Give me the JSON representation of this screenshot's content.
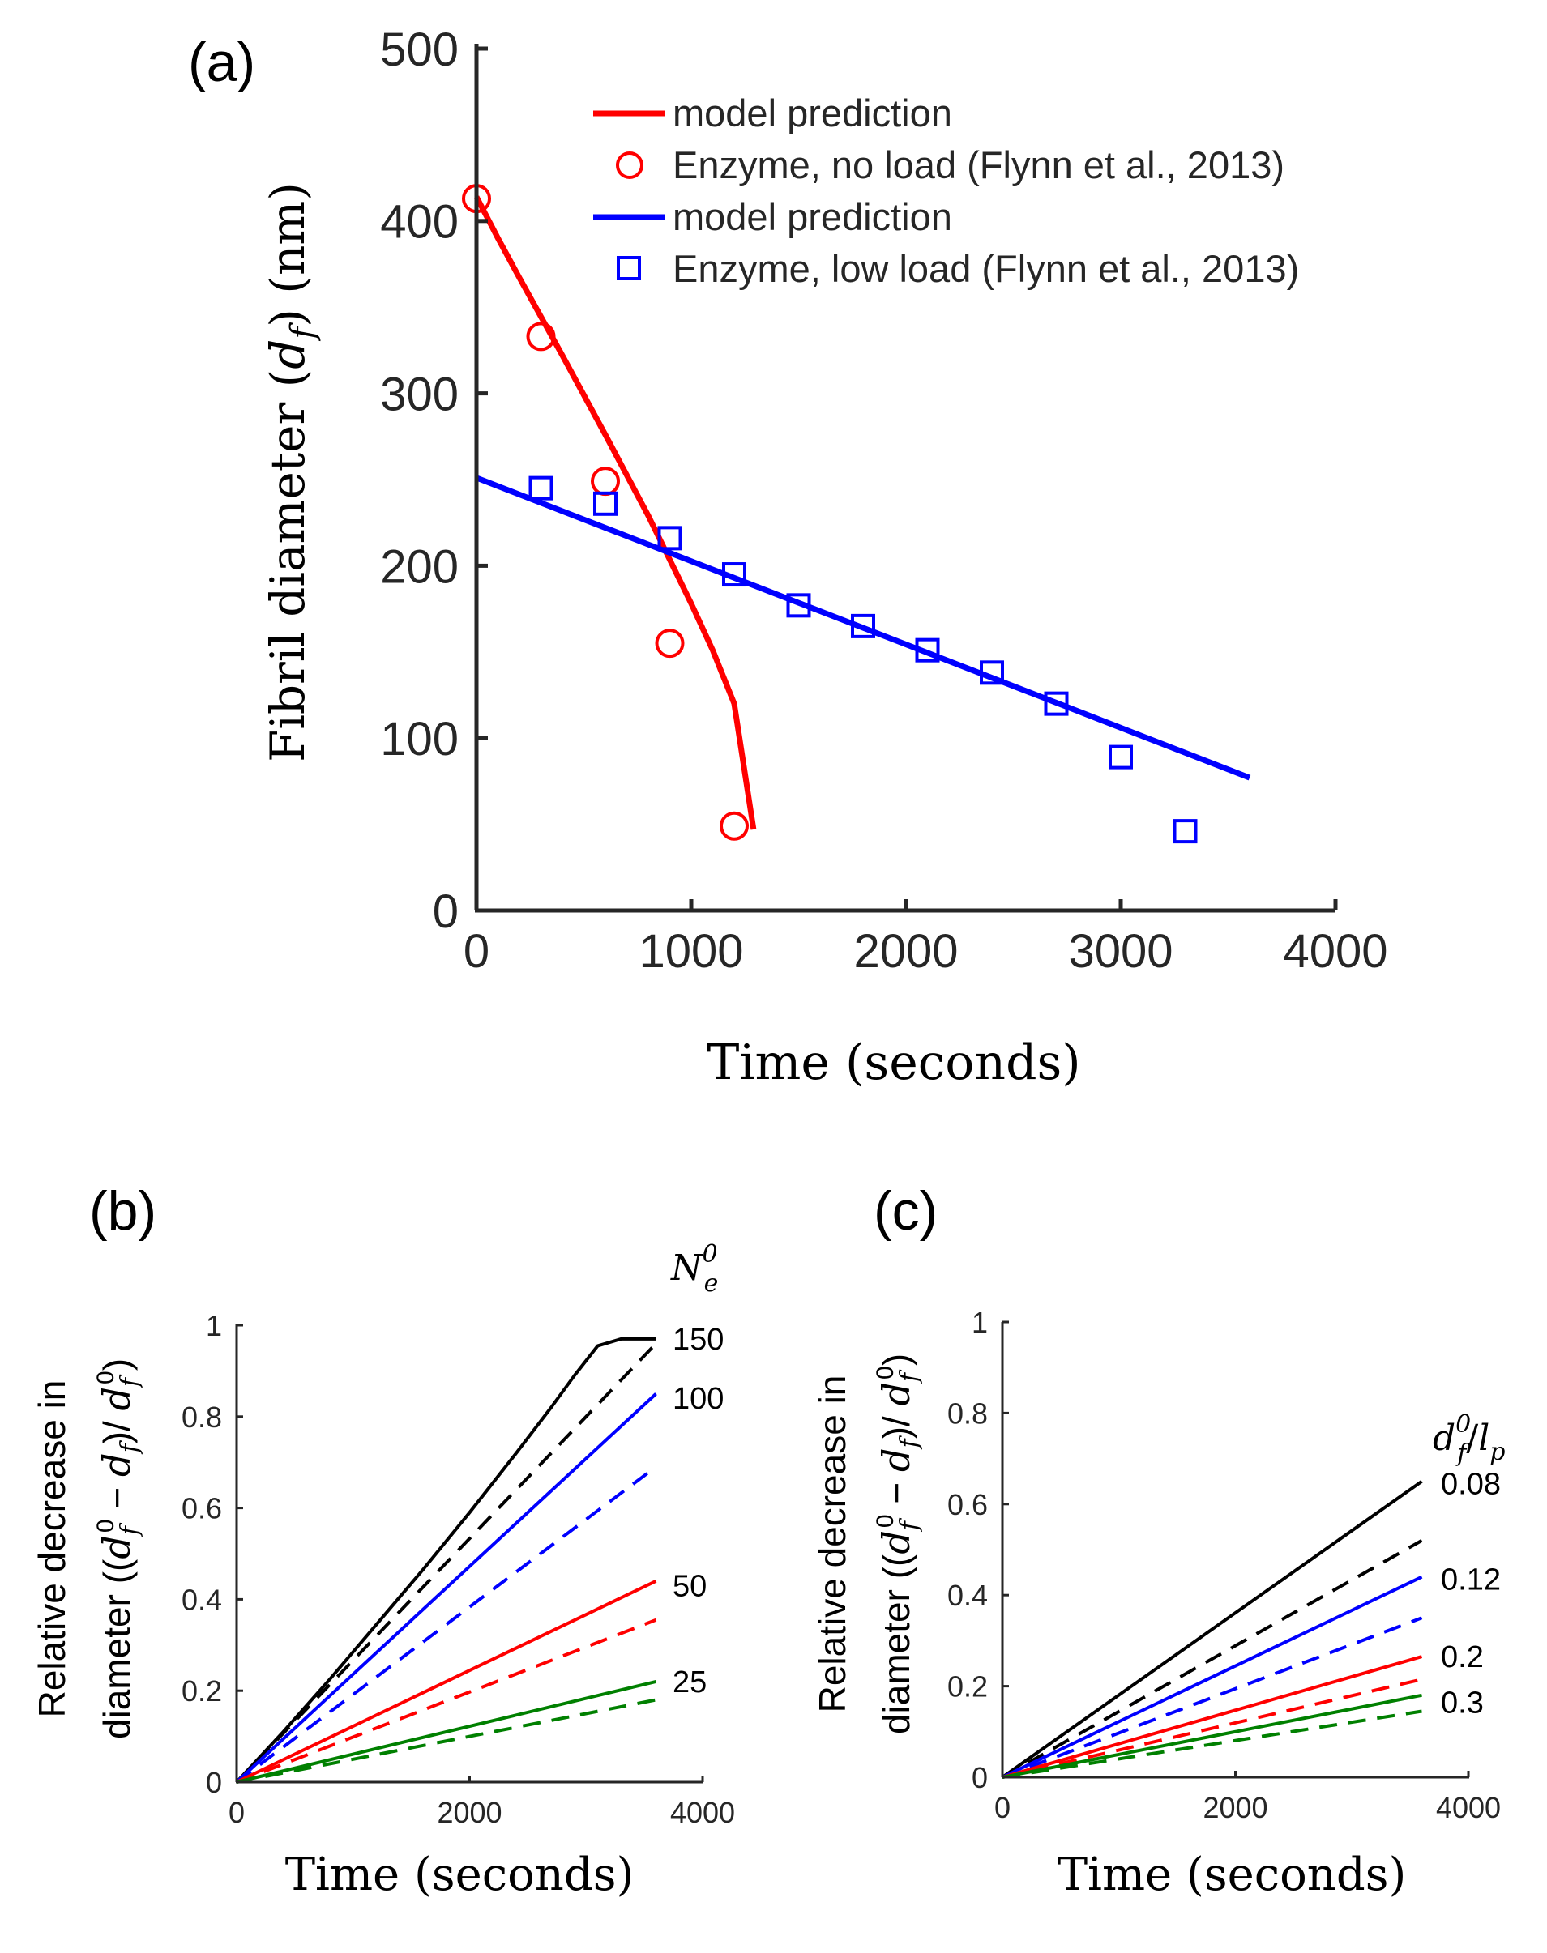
{
  "chart_data": [
    {
      "panel_label": "(a)",
      "type": "line",
      "xlabel": "Time (seconds)",
      "ylabel": "Fibril diameter (d_f) (nm)",
      "ylabel_parts": {
        "before": "Fibril diameter ",
        "open": "(",
        "var": "d",
        "sub": "f",
        "close": ")",
        "after": " (nm)"
      },
      "xlim": [
        0,
        4000
      ],
      "ylim": [
        0,
        500
      ],
      "xticks": [
        0,
        1000,
        2000,
        3000,
        4000
      ],
      "yticks": [
        0,
        100,
        200,
        300,
        400,
        500
      ],
      "xtick_labels": [
        "0",
        "1000",
        "2000",
        "3000",
        "4000"
      ],
      "ytick_labels": [
        "0",
        "100",
        "200",
        "300",
        "400",
        "500"
      ],
      "legend_position": "top-right",
      "legend": [
        {
          "label": "model prediction",
          "kind": "line",
          "color": "#ff0000"
        },
        {
          "label": "Enzyme, no load (Flynn et al., 2013)",
          "kind": "circle",
          "color": "#ff0000"
        },
        {
          "label": "model prediction",
          "kind": "line",
          "color": "#0000ff"
        },
        {
          "label": "Enzyme, low load (Flynn et al., 2013)",
          "kind": "square",
          "color": "#0000ff"
        }
      ],
      "series": [
        {
          "name": "model prediction (no load)",
          "style": "line",
          "color": "#ff0000",
          "x": [
            0,
            100,
            200,
            400,
            600,
            800,
            1000,
            1100,
            1200,
            1290
          ],
          "y": [
            414,
            390,
            367,
            322,
            276,
            229,
            178,
            151,
            120,
            47
          ]
        },
        {
          "name": "Enzyme, no load (Flynn et al., 2013)",
          "style": "circle",
          "color": "#ff0000",
          "x": [
            0,
            300,
            600,
            900,
            1200
          ],
          "y": [
            413,
            333,
            249,
            155,
            49
          ]
        },
        {
          "name": "model prediction (low load)",
          "style": "line",
          "color": "#0000ff",
          "x": [
            0,
            3600
          ],
          "y": [
            251,
            77
          ]
        },
        {
          "name": "Enzyme, low load (Flynn et al., 2013)",
          "style": "square",
          "color": "#0000ff",
          "x": [
            300,
            600,
            900,
            1200,
            1500,
            1800,
            2100,
            2400,
            2700,
            3000,
            3300
          ],
          "y": [
            245,
            236,
            216,
            195,
            177,
            165,
            151,
            138,
            120,
            89,
            46
          ]
        }
      ]
    },
    {
      "panel_label": "(b)",
      "type": "line",
      "xlabel": "Time (seconds)",
      "ylabel_line1": "Relative decrease in",
      "ylabel_line2": "diameter ((d_f^0 − d_f)/ d_f^0)",
      "xlim": [
        0,
        4000
      ],
      "ylim": [
        0,
        1
      ],
      "xticks": [
        0,
        2000,
        4000
      ],
      "yticks": [
        0,
        0.2,
        0.4,
        0.6,
        0.8,
        1
      ],
      "xtick_labels": [
        "0",
        "2000",
        "4000"
      ],
      "ytick_labels": [
        "0",
        "0.2",
        "0.4",
        "0.6",
        "0.8",
        "1"
      ],
      "legend_title": "N_e^0",
      "legend_position": "right",
      "series": [
        {
          "name": "150",
          "color": "#000000",
          "style": "solid",
          "x": [
            0,
            400,
            800,
            1200,
            1600,
            2000,
            2400,
            2700,
            2900,
            3100,
            3300,
            3600
          ],
          "y": [
            0,
            0.11,
            0.225,
            0.345,
            0.465,
            0.59,
            0.72,
            0.82,
            0.89,
            0.955,
            0.97,
            0.97
          ]
        },
        {
          "name": "150",
          "color": "#000000",
          "style": "dashed",
          "x": [
            0,
            3600
          ],
          "y": [
            0,
            0.96
          ]
        },
        {
          "name": "100",
          "color": "#0000ff",
          "style": "solid",
          "x": [
            0,
            3600
          ],
          "y": [
            0,
            0.85
          ]
        },
        {
          "name": "100",
          "color": "#0000ff",
          "style": "dashed",
          "x": [
            0,
            3600
          ],
          "y": [
            0,
            0.69
          ]
        },
        {
          "name": "50",
          "color": "#ff0000",
          "style": "solid",
          "x": [
            0,
            3600
          ],
          "y": [
            0,
            0.44
          ]
        },
        {
          "name": "50",
          "color": "#ff0000",
          "style": "dashed",
          "x": [
            0,
            3600
          ],
          "y": [
            0,
            0.355
          ]
        },
        {
          "name": "25",
          "color": "#008000",
          "style": "solid",
          "x": [
            0,
            3600
          ],
          "y": [
            0,
            0.22
          ]
        },
        {
          "name": "25",
          "color": "#008000",
          "style": "dashed",
          "x": [
            0,
            3600
          ],
          "y": [
            0,
            0.18
          ]
        }
      ],
      "annotations": [
        "150",
        "100",
        "50",
        "25"
      ],
      "annotation_values": [
        0.97,
        0.84,
        0.43,
        0.22
      ]
    },
    {
      "panel_label": "(c)",
      "type": "line",
      "xlabel": "Time (seconds)",
      "ylabel_line1": "Relative decrease in",
      "ylabel_line2": "diameter ((d_f^0 − d_f)/ d_f^0)",
      "xlim": [
        0,
        4000
      ],
      "ylim": [
        0,
        1
      ],
      "xticks": [
        0,
        2000,
        4000
      ],
      "yticks": [
        0,
        0.2,
        0.4,
        0.6,
        0.8,
        1
      ],
      "xtick_labels": [
        "0",
        "2000",
        "4000"
      ],
      "ytick_labels": [
        "0",
        "0.2",
        "0.4",
        "0.6",
        "0.8",
        "1"
      ],
      "legend_title": "d_f^0/l_p",
      "legend_position": "right",
      "series": [
        {
          "name": "0.08",
          "color": "#000000",
          "style": "solid",
          "x": [
            0,
            3600
          ],
          "y": [
            0,
            0.65
          ]
        },
        {
          "name": "0.08",
          "color": "#000000",
          "style": "dashed",
          "x": [
            0,
            3600
          ],
          "y": [
            0,
            0.52
          ]
        },
        {
          "name": "0.12",
          "color": "#0000ff",
          "style": "solid",
          "x": [
            0,
            3600
          ],
          "y": [
            0,
            0.44
          ]
        },
        {
          "name": "0.12",
          "color": "#0000ff",
          "style": "dashed",
          "x": [
            0,
            3600
          ],
          "y": [
            0,
            0.35
          ]
        },
        {
          "name": "0.2",
          "color": "#ff0000",
          "style": "solid",
          "x": [
            0,
            3600
          ],
          "y": [
            0,
            0.265
          ]
        },
        {
          "name": "0.2",
          "color": "#ff0000",
          "style": "dashed",
          "x": [
            0,
            3600
          ],
          "y": [
            0,
            0.215
          ]
        },
        {
          "name": "0.3",
          "color": "#008000",
          "style": "solid",
          "x": [
            0,
            3600
          ],
          "y": [
            0,
            0.18
          ]
        },
        {
          "name": "0.3",
          "color": "#008000",
          "style": "dashed",
          "x": [
            0,
            3600
          ],
          "y": [
            0,
            0.145
          ]
        }
      ],
      "annotations": [
        "0.08",
        "0.12",
        "0.2",
        "0.3"
      ],
      "annotation_values": [
        0.645,
        0.435,
        0.265,
        0.165
      ]
    }
  ]
}
